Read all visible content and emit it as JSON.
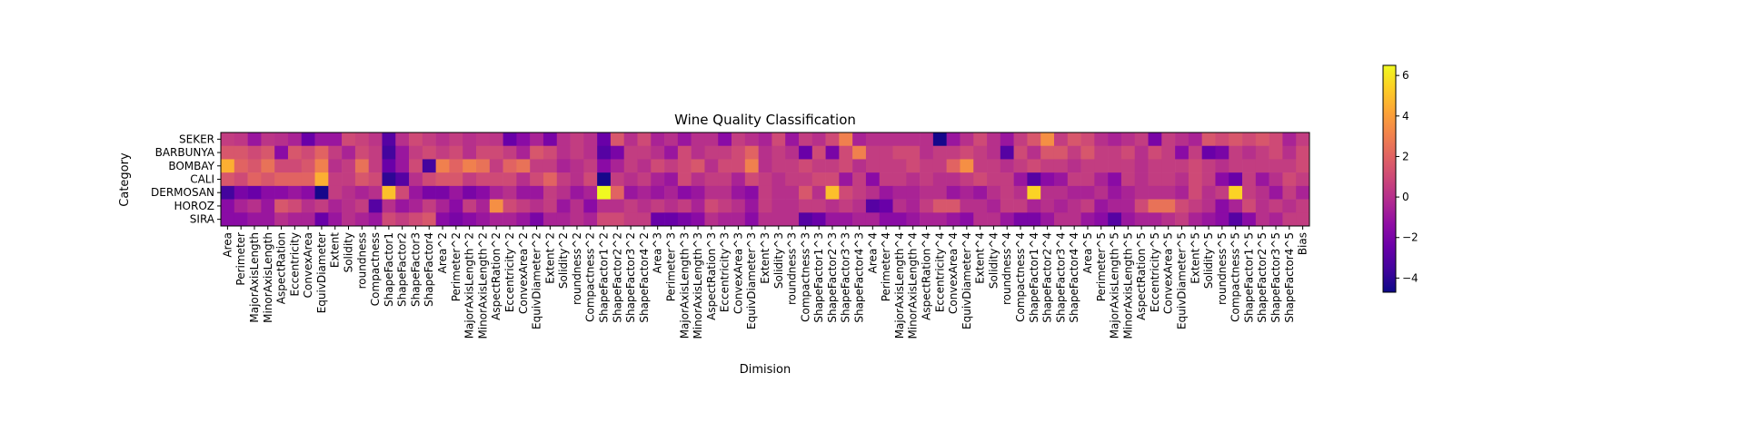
{
  "chart_data": {
    "type": "heatmap",
    "title": "Wine Quality Classification",
    "xlabel": "Dimision",
    "ylabel": "Category",
    "colormap": "plasma",
    "colorbar": {
      "range": [
        -4.7,
        6.5
      ],
      "ticks": [
        6,
        4,
        2,
        0,
        -2,
        -4
      ],
      "tick_labels": [
        "6",
        "4",
        "2",
        "0",
        "−2",
        "−4"
      ]
    },
    "rows": [
      "SEKER",
      "BARBUNYA",
      "BOMBAY",
      "CALI",
      "DERMOSAN",
      "HOROZ",
      "SIRA"
    ],
    "columns": [
      "Area",
      "Perimeter",
      "MajorAxisLength",
      "MinorAxisLength",
      "AspectRation",
      "Eccentricity",
      "ConvexArea",
      "EquivDiameter",
      "Extent",
      "Solidity",
      "roundness",
      "Compactness",
      "ShapeFactor1",
      "ShapeFactor2",
      "ShapeFactor3",
      "ShapeFactor4",
      "Area^2",
      "Perimeter^2",
      "MajorAxisLength^2",
      "MinorAxisLength^2",
      "AspectRation^2",
      "Eccentricity^2",
      "ConvexArea^2",
      "EquivDiameter^2",
      "Extent^2",
      "Solidity^2",
      "roundness^2",
      "Compactness^2",
      "ShapeFactor1^2",
      "ShapeFactor2^2",
      "ShapeFactor3^2",
      "ShapeFactor4^2",
      "Area^3",
      "Perimeter^3",
      "MajorAxisLength^3",
      "MinorAxisLength^3",
      "AspectRation^3",
      "Eccentricity^3",
      "ConvexArea^3",
      "EquivDiameter^3",
      "Extent^3",
      "Solidity^3",
      "roundness^3",
      "Compactness^3",
      "ShapeFactor1^3",
      "ShapeFactor2^3",
      "ShapeFactor3^3",
      "ShapeFactor4^3",
      "Area^4",
      "Perimeter^4",
      "MajorAxisLength^4",
      "MinorAxisLength^4",
      "AspectRation^4",
      "Eccentricity^4",
      "ConvexArea^4",
      "EquivDiameter^4",
      "Extent^4",
      "Solidity^4",
      "roundness^4",
      "Compactness^4",
      "ShapeFactor1^4",
      "ShapeFactor2^4",
      "ShapeFactor3^4",
      "ShapeFactor4^4",
      "Area^5",
      "Perimeter^5",
      "MajorAxisLength^5",
      "MinorAxisLength^5",
      "AspectRation^5",
      "Eccentricity^5",
      "ConvexArea^5",
      "EquivDiameter^5",
      "Extent^5",
      "Solidity^5",
      "roundness^5",
      "Compactness^5",
      "ShapeFactor1^5",
      "ShapeFactor2^5",
      "ShapeFactor3^5",
      "ShapeFactor4^5",
      "Bias"
    ],
    "values": [
      [
        0.5,
        0.3,
        -1.0,
        0.2,
        0.0,
        -0.5,
        -2.5,
        -1.0,
        -1.0,
        1.0,
        0.7,
        0.2,
        -3.0,
        0.0,
        1.0,
        0.5,
        0.0,
        0.5,
        0.0,
        0.3,
        0.2,
        -2.5,
        -1.5,
        -0.5,
        -2.0,
        0.0,
        0.5,
        0.0,
        -2.5,
        1.5,
        0.0,
        1.0,
        -0.5,
        0.0,
        -1.0,
        0.0,
        0.0,
        -1.5,
        0.5,
        0.0,
        -0.5,
        1.0,
        -1.0,
        0.5,
        0.0,
        1.0,
        3.0,
        -0.5,
        0.0,
        0.0,
        0.0,
        0.0,
        0.0,
        -4.5,
        -1.0,
        0.0,
        1.0,
        0.0,
        -1.0,
        0.5,
        1.5,
        3.5,
        0.5,
        1.5,
        1.0,
        0.0,
        -0.5,
        0.0,
        0.5,
        -2.0,
        0.5,
        0.0,
        -0.5,
        1.5,
        1.0,
        1.5,
        1.0,
        1.5,
        1.0,
        -0.5,
        0.5
      ],
      [
        1.5,
        1.5,
        1.0,
        1.5,
        -1.5,
        1.5,
        1.0,
        2.0,
        0.5,
        -0.5,
        1.0,
        0.5,
        -3.5,
        -1.0,
        0.5,
        1.0,
        0.5,
        1.0,
        0.0,
        1.0,
        1.0,
        0.5,
        -0.5,
        1.5,
        1.0,
        0.0,
        0.5,
        0.0,
        -3.0,
        -2.0,
        0.5,
        0.5,
        0.0,
        -1.0,
        1.0,
        0.0,
        0.5,
        0.5,
        1.0,
        2.0,
        0.0,
        0.5,
        0.0,
        -2.5,
        1.0,
        -2.0,
        1.0,
        3.0,
        0.5,
        0.5,
        1.0,
        1.0,
        0.0,
        0.5,
        0.5,
        1.0,
        0.5,
        0.0,
        -3.0,
        1.0,
        0.0,
        1.5,
        1.5,
        0.5,
        1.5,
        0.5,
        0.5,
        1.0,
        0.0,
        1.0,
        0.5,
        -1.5,
        0.5,
        -2.5,
        -2.0,
        0.5,
        0.0,
        0.5,
        1.0,
        0.0,
        1.0
      ],
      [
        4.5,
        2.0,
        1.5,
        2.5,
        1.0,
        1.0,
        1.5,
        3.0,
        0.0,
        0.5,
        2.5,
        0.5,
        -2.5,
        -1.0,
        1.0,
        -3.5,
        3.0,
        2.0,
        3.0,
        2.5,
        0.5,
        2.0,
        2.5,
        0.5,
        0.5,
        -0.5,
        0.0,
        0.5,
        -1.5,
        -0.5,
        0.5,
        0.0,
        1.0,
        0.5,
        1.0,
        1.5,
        0.0,
        1.0,
        1.0,
        3.0,
        0.0,
        0.5,
        0.5,
        1.0,
        0.5,
        0.5,
        1.0,
        0.0,
        0.5,
        0.5,
        0.5,
        1.0,
        0.5,
        0.5,
        2.0,
        3.5,
        0.5,
        0.5,
        0.0,
        0.5,
        1.0,
        0.5,
        0.5,
        0.0,
        0.5,
        0.5,
        0.5,
        0.5,
        0.0,
        0.5,
        0.5,
        0.5,
        1.0,
        0.5,
        0.0,
        0.5,
        0.5,
        0.5,
        0.5,
        0.5,
        1.0
      ],
      [
        1.5,
        1.0,
        2.0,
        1.5,
        2.0,
        2.0,
        2.0,
        4.5,
        0.5,
        0.5,
        1.5,
        1.0,
        -4.0,
        -3.0,
        0.0,
        1.0,
        1.5,
        1.5,
        0.5,
        1.0,
        1.0,
        1.0,
        0.0,
        1.0,
        2.0,
        0.5,
        0.0,
        1.0,
        -4.5,
        0.5,
        0.0,
        0.5,
        -0.5,
        -1.0,
        1.0,
        0.0,
        0.5,
        0.5,
        -0.5,
        1.0,
        0.5,
        0.0,
        0.5,
        0.5,
        1.0,
        1.0,
        -1.0,
        0.5,
        -1.5,
        0.5,
        0.5,
        0.0,
        0.5,
        0.0,
        0.0,
        0.5,
        1.0,
        0.5,
        0.5,
        -1.0,
        -3.0,
        -1.5,
        -1.0,
        0.5,
        0.5,
        -0.5,
        -1.5,
        0.5,
        0.0,
        0.5,
        0.5,
        0.0,
        1.0,
        0.5,
        -1.5,
        -2.5,
        0.5,
        -1.0,
        0.0,
        1.0,
        0.5
      ],
      [
        -3.5,
        -2.0,
        -2.5,
        -1.5,
        -1.5,
        -1.0,
        -1.5,
        -4.5,
        0.5,
        0.0,
        -0.5,
        0.0,
        5.0,
        1.0,
        -1.0,
        -2.0,
        -2.0,
        -1.0,
        -2.0,
        -1.5,
        -0.5,
        0.0,
        -1.0,
        -1.0,
        0.5,
        0.0,
        -1.0,
        -0.5,
        6.5,
        2.0,
        -1.0,
        -0.5,
        -1.0,
        -0.5,
        -1.5,
        -1.0,
        0.0,
        0.0,
        -1.0,
        -1.5,
        0.5,
        0.0,
        0.0,
        1.5,
        0.0,
        5.0,
        1.0,
        0.5,
        0.0,
        -1.0,
        -0.5,
        -0.5,
        0.0,
        0.0,
        -1.0,
        -0.5,
        -1.0,
        0.0,
        0.5,
        0.0,
        5.5,
        0.0,
        0.0,
        -0.5,
        -0.5,
        0.0,
        -1.0,
        -0.5,
        0.0,
        0.0,
        0.0,
        -0.5,
        1.0,
        0.0,
        0.5,
        5.5,
        0.5,
        0.0,
        -1.0,
        0.5,
        -0.5
      ],
      [
        -1.5,
        -0.5,
        0.0,
        -1.0,
        1.5,
        1.0,
        0.0,
        0.5,
        -0.5,
        0.0,
        0.5,
        -3.0,
        0.0,
        -1.0,
        -0.5,
        0.5,
        -0.5,
        -1.5,
        0.5,
        -0.5,
        3.5,
        1.0,
        0.5,
        0.0,
        0.5,
        -1.0,
        0.0,
        -1.5,
        0.0,
        0.0,
        0.5,
        0.0,
        0.5,
        0.0,
        0.5,
        -0.5,
        1.0,
        0.5,
        0.0,
        -1.0,
        0.5,
        0.0,
        0.0,
        0.5,
        0.5,
        0.0,
        0.5,
        0.0,
        -3.0,
        -2.5,
        0.0,
        -0.5,
        0.5,
        1.5,
        1.5,
        0.0,
        0.0,
        -0.5,
        0.5,
        0.5,
        -0.5,
        0.0,
        -0.5,
        0.0,
        0.5,
        -1.0,
        -0.5,
        -0.5,
        1.0,
        2.5,
        2.5,
        1.0,
        0.5,
        0.0,
        -1.5,
        -0.5,
        1.0,
        0.0,
        0.5,
        0.0,
        0.5
      ],
      [
        -1.5,
        -1.5,
        -1.0,
        -1.0,
        0.0,
        -0.5,
        -0.5,
        -2.5,
        -1.0,
        0.0,
        -0.5,
        -1.0,
        1.0,
        0.5,
        1.0,
        1.5,
        -1.5,
        -2.0,
        -1.5,
        -1.0,
        -0.5,
        -0.5,
        -1.0,
        -2.0,
        -0.5,
        -0.5,
        0.0,
        -0.5,
        1.0,
        1.0,
        0.5,
        0.5,
        -2.5,
        -2.5,
        -2.0,
        -1.5,
        0.0,
        -0.5,
        -0.5,
        -1.5,
        0.0,
        0.0,
        0.0,
        -3.0,
        -2.5,
        -1.0,
        -1.0,
        -0.5,
        -0.5,
        -1.5,
        -1.5,
        -1.0,
        -0.5,
        -0.5,
        -1.0,
        -1.5,
        0.0,
        0.0,
        -1.0,
        -2.0,
        -2.0,
        -1.0,
        0.0,
        0.0,
        -1.0,
        -1.5,
        -3.0,
        -1.0,
        -0.5,
        -0.5,
        0.0,
        0.5,
        -0.5,
        -1.0,
        -1.5,
        -3.0,
        -1.5,
        0.0,
        -0.5,
        0.5,
        0.5
      ]
    ]
  }
}
